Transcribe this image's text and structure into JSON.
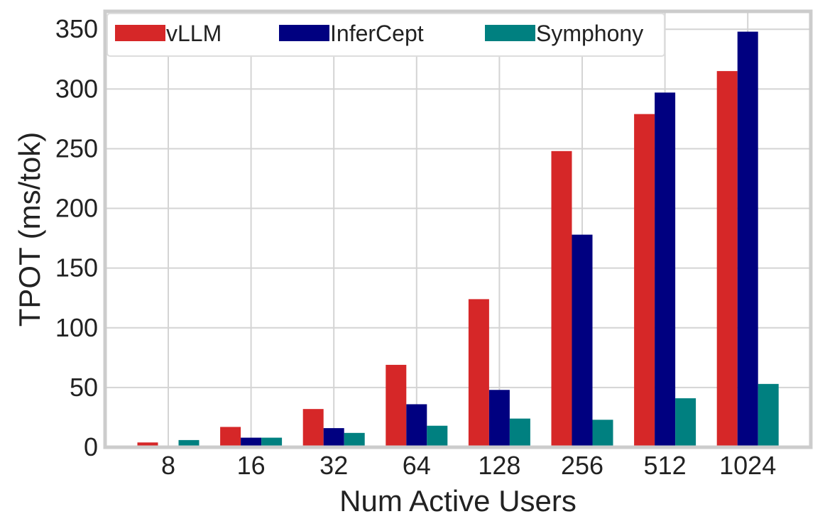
{
  "chart_data": {
    "type": "bar",
    "title": "",
    "xlabel": "Num Active Users",
    "ylabel": "TPOT (ms/tok)",
    "categories": [
      "8",
      "16",
      "32",
      "64",
      "128",
      "256",
      "512",
      "1024"
    ],
    "ylim": [
      0,
      365
    ],
    "yticks": [
      0,
      50,
      100,
      150,
      200,
      250,
      300,
      350
    ],
    "grid": true,
    "legend_position": "top-left",
    "series": [
      {
        "name": "vLLM",
        "color": "#d62728",
        "values": [
          4,
          17,
          32,
          69,
          124,
          248,
          279,
          315
        ]
      },
      {
        "name": "InferCept",
        "color": "#000080",
        "values": [
          1,
          8,
          16,
          36,
          48,
          178,
          297,
          348
        ]
      },
      {
        "name": "Symphony",
        "color": "#008080",
        "values": [
          6,
          8,
          12,
          18,
          24,
          23,
          41,
          53
        ]
      }
    ]
  }
}
